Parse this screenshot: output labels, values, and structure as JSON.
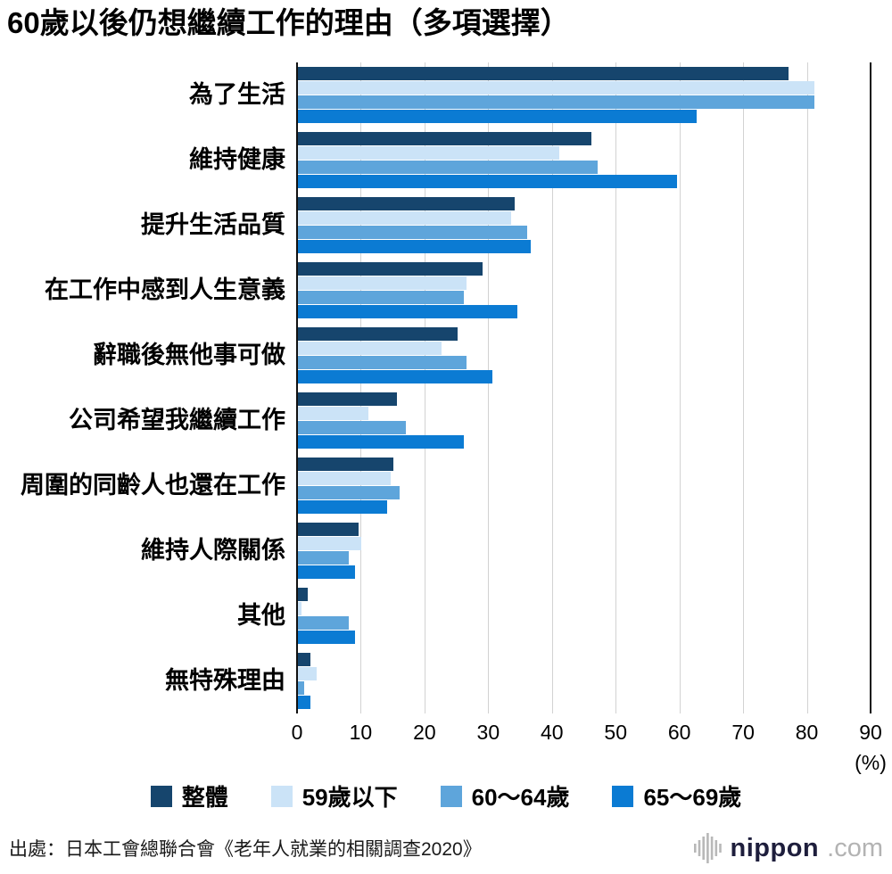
{
  "title": "60歲以後仍想繼續工作的理由（多項選擇）",
  "source": "出處：日本工會總聯合會《老年人就業的相關調查2020》",
  "brand": {
    "icon": "soundwave-bars-icon",
    "name": "nippon",
    "tld": ".com"
  },
  "chart_data": {
    "type": "bar",
    "orientation": "horizontal",
    "title": "60歲以後仍想繼續工作的理由（多項選擇）",
    "x_unit": "(%)",
    "xlim": [
      0,
      90
    ],
    "xticks": [
      0,
      10,
      20,
      30,
      40,
      50,
      60,
      70,
      80,
      90
    ],
    "grid": true,
    "legend_position": "bottom",
    "categories": [
      "為了生活",
      "維持健康",
      "提升生活品質",
      "在工作中感到人生意義",
      "辭職後無他事可做",
      "公司希望我繼續工作",
      "周圍的同齡人也還在工作",
      "維持人際關係",
      "其他",
      "無特殊理由"
    ],
    "series": [
      {
        "name": "整體",
        "color": "#16456D",
        "values": [
          77,
          46,
          34,
          29,
          25,
          15.5,
          15,
          9.5,
          1.5,
          2
        ]
      },
      {
        "name": "59歲以下",
        "color": "#CBE3F7",
        "values": [
          81,
          41,
          33.5,
          26.5,
          22.5,
          11,
          14.5,
          10,
          0.5,
          3
        ]
      },
      {
        "name": "60〜64歲",
        "color": "#5EA5DB",
        "values": [
          81,
          47,
          36,
          26,
          26.5,
          17,
          16,
          8,
          8,
          1
        ]
      },
      {
        "name": "65〜69歲",
        "color": "#0B7BD3",
        "values": [
          62.5,
          59.5,
          36.5,
          34.5,
          30.5,
          26,
          14,
          9,
          9,
          2
        ]
      }
    ]
  }
}
